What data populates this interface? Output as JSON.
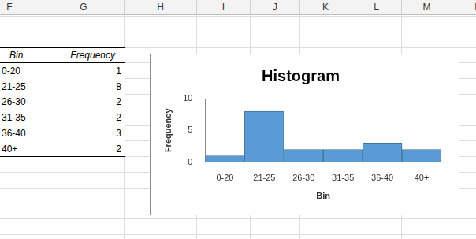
{
  "chart_data": {
    "type": "bar",
    "title": "Histogram",
    "categories": [
      "0-20",
      "21-25",
      "26-30",
      "31-35",
      "36-40",
      "40+"
    ],
    "values": [
      1,
      8,
      2,
      2,
      3,
      2
    ],
    "color": "#5b9bd5",
    "x_label": "Bin",
    "y_label": "Frequency",
    "ylim": [
      0,
      10
    ],
    "yticks": [
      0,
      5,
      10
    ],
    "grid": false
  },
  "spreadsheet": {
    "column_headers": [
      "F",
      "G",
      "H",
      "I",
      "J",
      "K",
      "L",
      "M",
      "N"
    ],
    "table": {
      "header": [
        "Bin",
        "Frequency"
      ],
      "rows": [
        [
          "0-20",
          1
        ],
        [
          "21-25",
          8
        ],
        [
          "26-30",
          2
        ],
        [
          "31-35",
          2
        ],
        [
          "36-40",
          3
        ],
        [
          "40+",
          2
        ]
      ]
    }
  }
}
